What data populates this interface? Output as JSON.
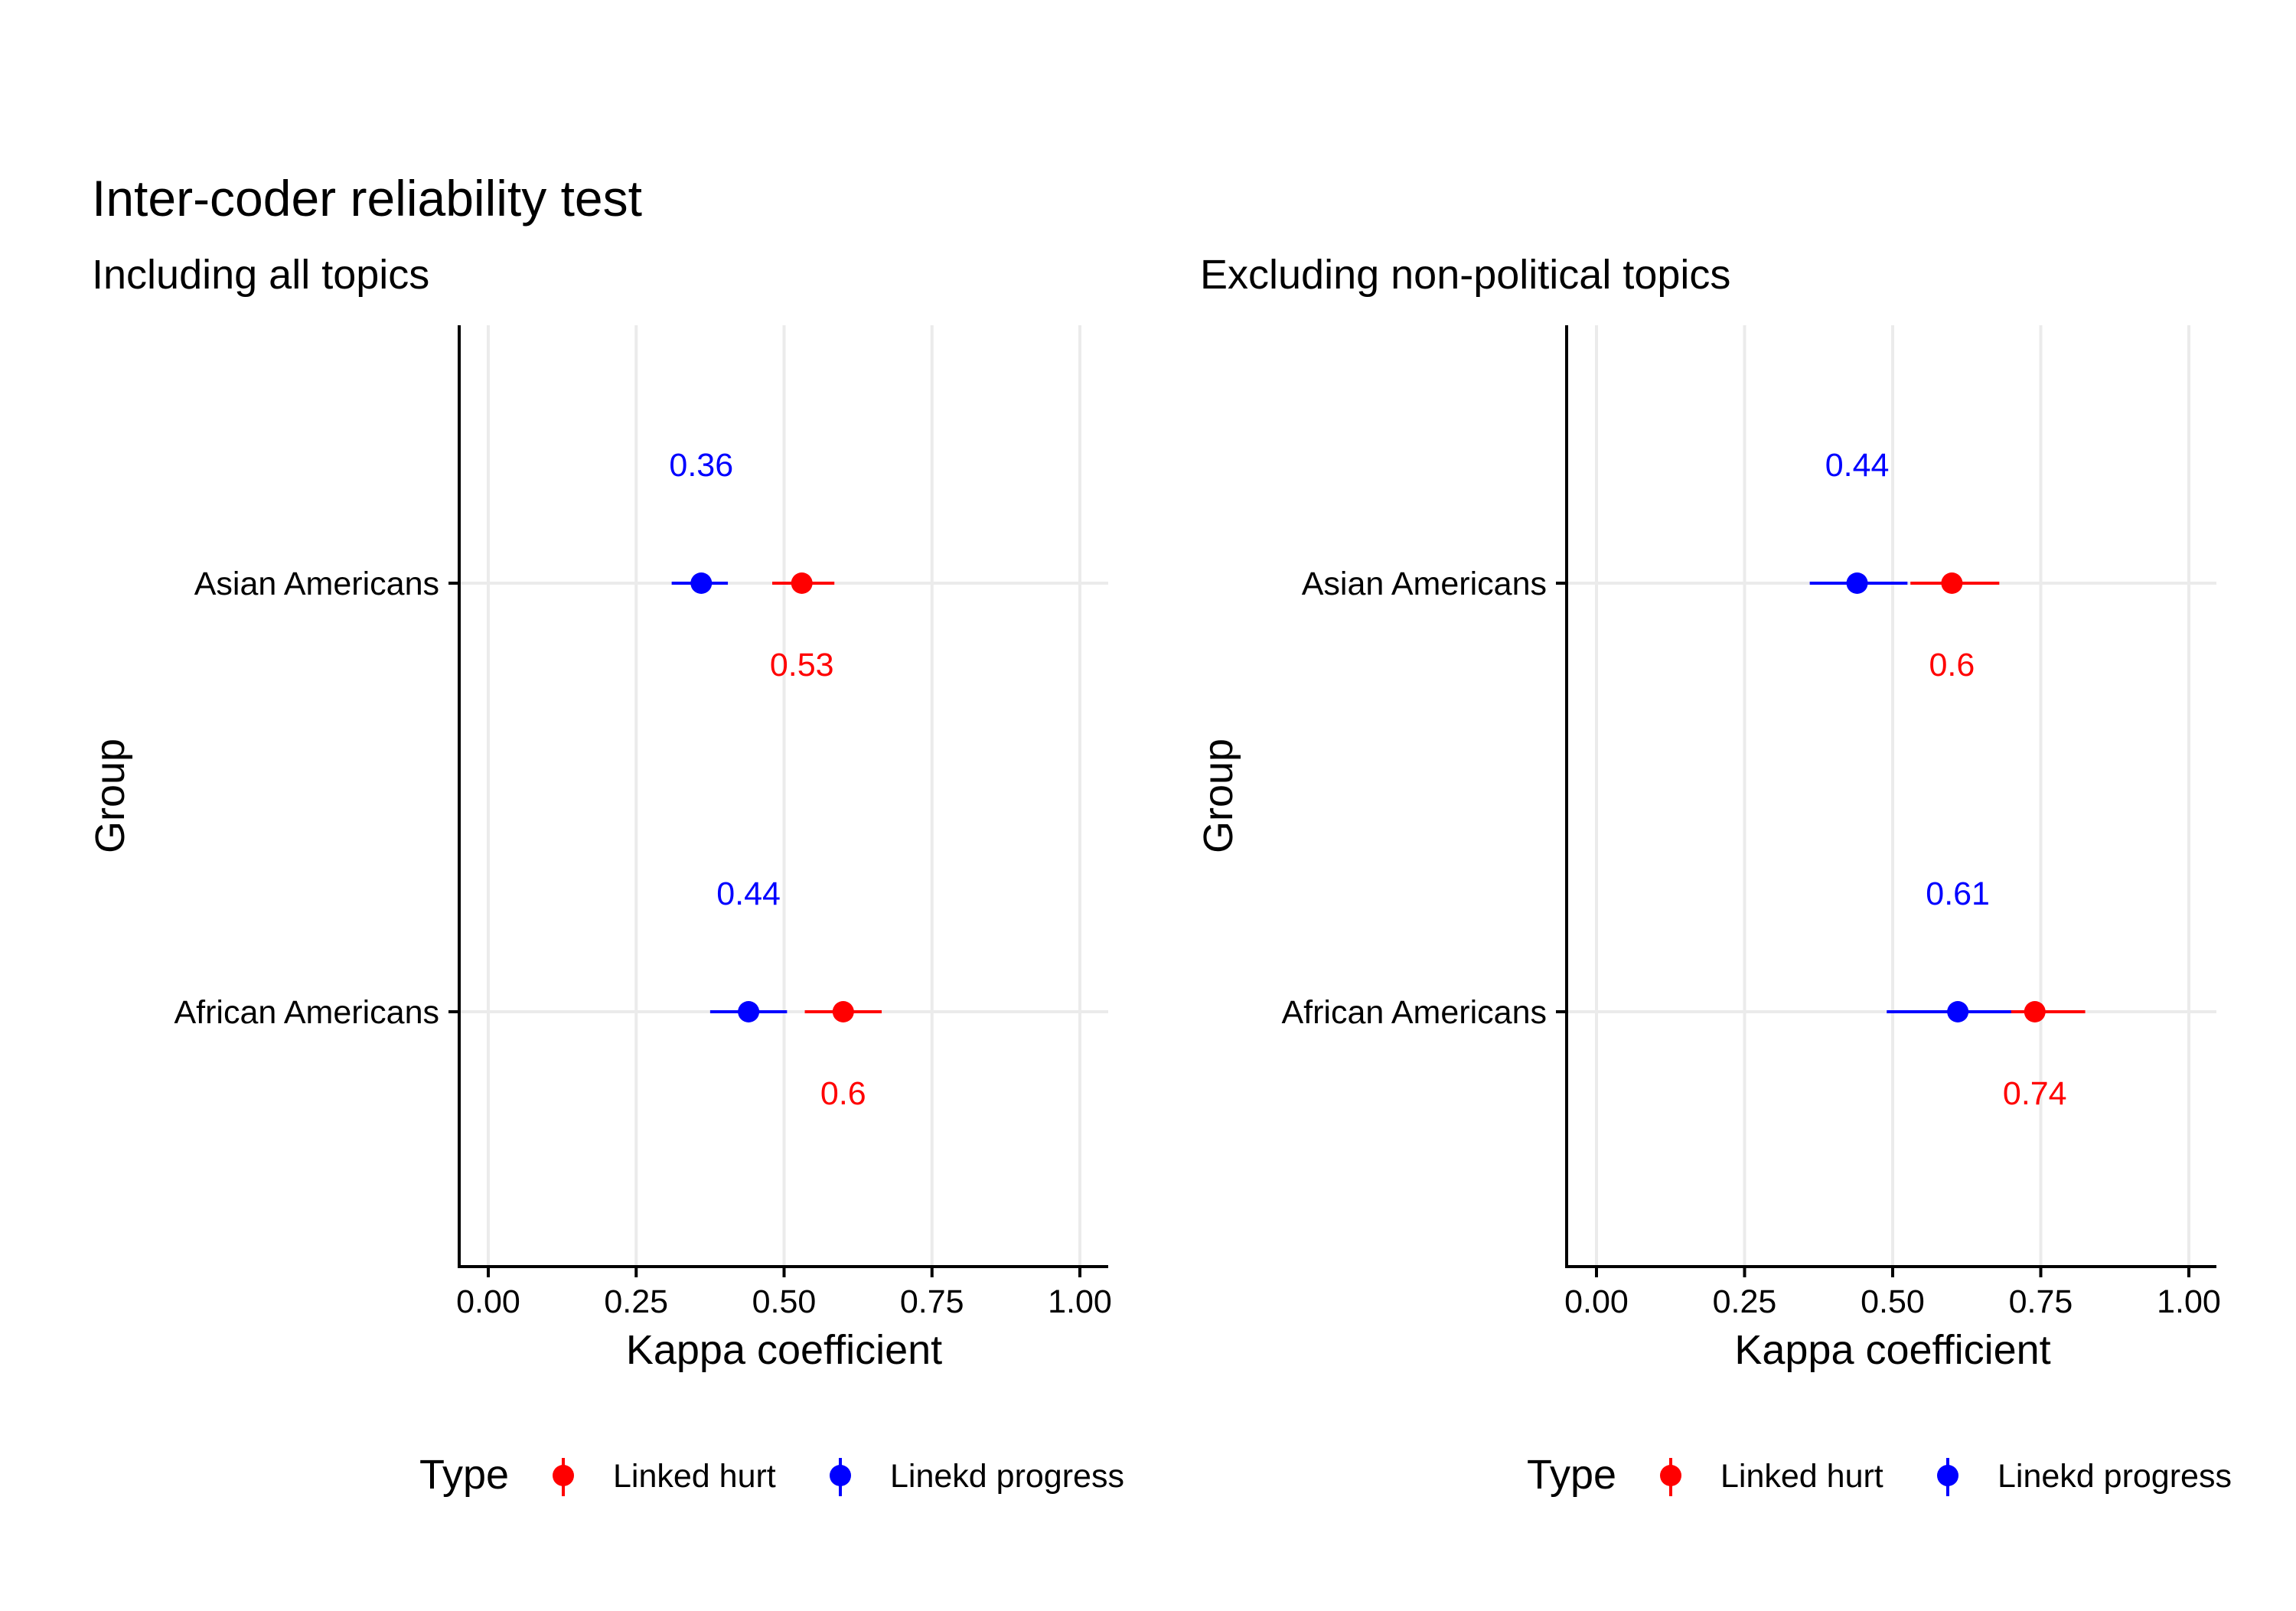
{
  "title": "Inter-coder reliability test",
  "legend": {
    "title": "Type",
    "items": [
      {
        "label": "Linked hurt",
        "color": "#ff0000"
      },
      {
        "label": "Linekd progress",
        "color": "#0000ff"
      }
    ]
  },
  "chart_data": [
    {
      "type": "dot-errorbar",
      "subtitle": "Including all topics",
      "xlabel": "Kappa coefficient",
      "ylabel": "Group",
      "xlim": [
        0,
        1
      ],
      "xticks": [
        0,
        0.25,
        0.5,
        0.75,
        1
      ],
      "xtick_labels": [
        "0.00",
        "0.25",
        "0.50",
        "0.75",
        "1.00"
      ],
      "grid": "on",
      "categories": [
        "Asian Americans",
        "African Americans"
      ],
      "series": [
        {
          "name": "Linked hurt",
          "color": "#ff0000",
          "values": [
            0.53,
            0.6
          ],
          "low": [
            0.48,
            0.535
          ],
          "high": [
            0.585,
            0.665
          ],
          "labels": [
            "0.53",
            "0.6"
          ],
          "label_position": "below"
        },
        {
          "name": "Linekd progress",
          "color": "#0000ff",
          "values": [
            0.36,
            0.44
          ],
          "low": [
            0.31,
            0.375
          ],
          "high": [
            0.405,
            0.505
          ],
          "labels": [
            "0.36",
            "0.44"
          ],
          "label_position": "above"
        }
      ]
    },
    {
      "type": "dot-errorbar",
      "subtitle": "Excluding non-political topics",
      "xlabel": "Kappa coefficient",
      "ylabel": "Group",
      "xlim": [
        0,
        1
      ],
      "xticks": [
        0,
        0.25,
        0.5,
        0.75,
        1
      ],
      "xtick_labels": [
        "0.00",
        "0.25",
        "0.50",
        "0.75",
        "1.00"
      ],
      "grid": "on",
      "categories": [
        "Asian Americans",
        "African Americans"
      ],
      "series": [
        {
          "name": "Linked hurt",
          "color": "#ff0000",
          "values": [
            0.6,
            0.74
          ],
          "low": [
            0.53,
            0.655
          ],
          "high": [
            0.68,
            0.825
          ],
          "labels": [
            "0.6",
            "0.74"
          ],
          "label_position": "below"
        },
        {
          "name": "Linekd progress",
          "color": "#0000ff",
          "values": [
            0.44,
            0.61
          ],
          "low": [
            0.36,
            0.49
          ],
          "high": [
            0.525,
            0.7
          ],
          "labels": [
            "0.44",
            "0.61"
          ],
          "label_position": "above"
        }
      ]
    }
  ]
}
